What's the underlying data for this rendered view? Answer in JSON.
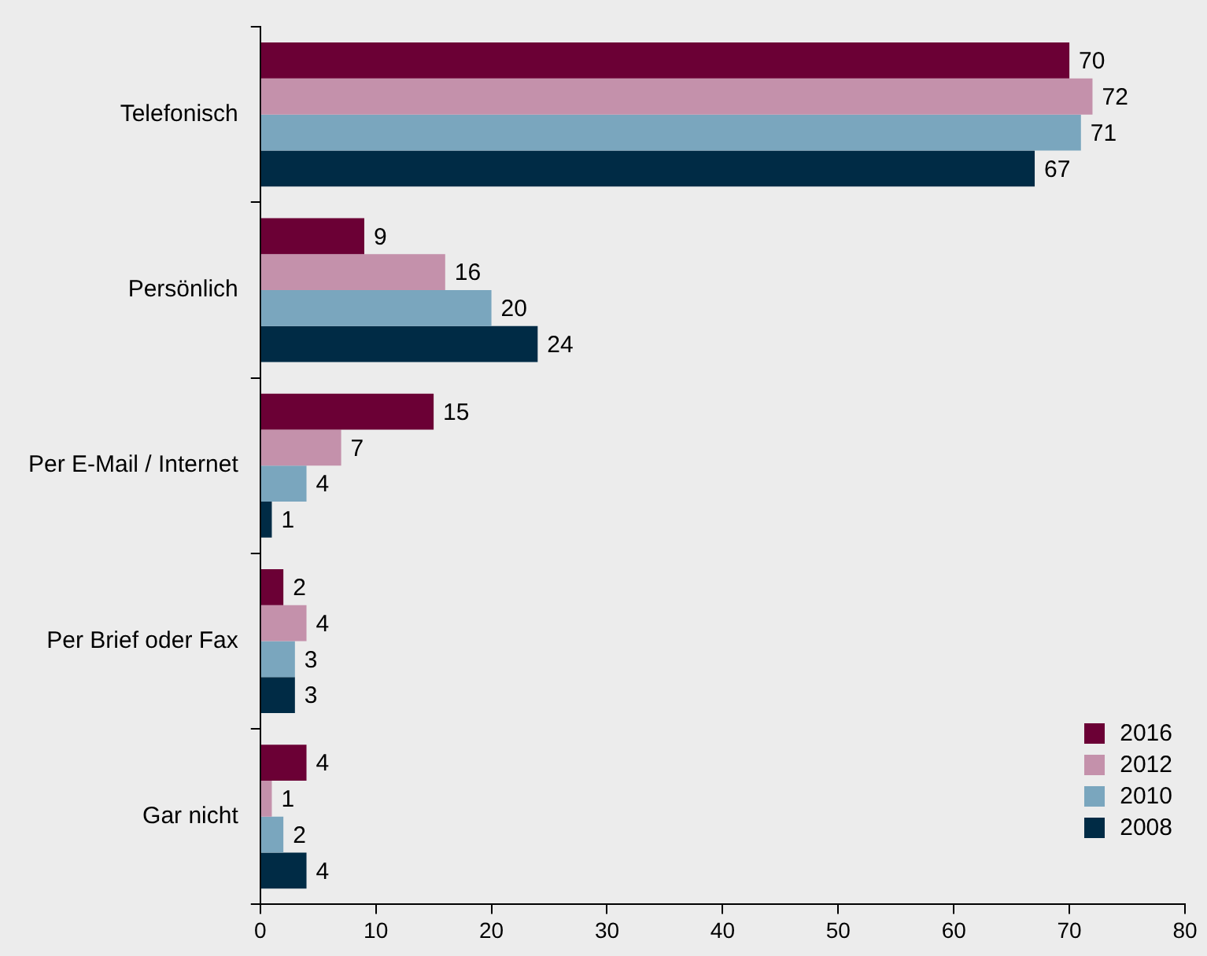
{
  "chart_data": {
    "type": "bar",
    "orientation": "horizontal",
    "categories": [
      "Telefonisch",
      "Persönlich",
      "Per E-Mail / Internet",
      "Per Brief oder Fax",
      "Gar nicht"
    ],
    "series": [
      {
        "name": "2016",
        "color": "#6b0035",
        "values": [
          70,
          9,
          15,
          2,
          4
        ]
      },
      {
        "name": "2012",
        "color": "#c491ab",
        "values": [
          72,
          16,
          7,
          4,
          1
        ]
      },
      {
        "name": "2010",
        "color": "#7aa6be",
        "values": [
          71,
          20,
          4,
          3,
          2
        ]
      },
      {
        "name": "2008",
        "color": "#002b45",
        "values": [
          67,
          24,
          1,
          3,
          4
        ]
      }
    ],
    "xlim": [
      0,
      80
    ],
    "xticks": [
      0,
      10,
      20,
      30,
      40,
      50,
      60,
      70,
      80
    ],
    "grid": false,
    "legend": "bottom right",
    "data_labels": true
  }
}
